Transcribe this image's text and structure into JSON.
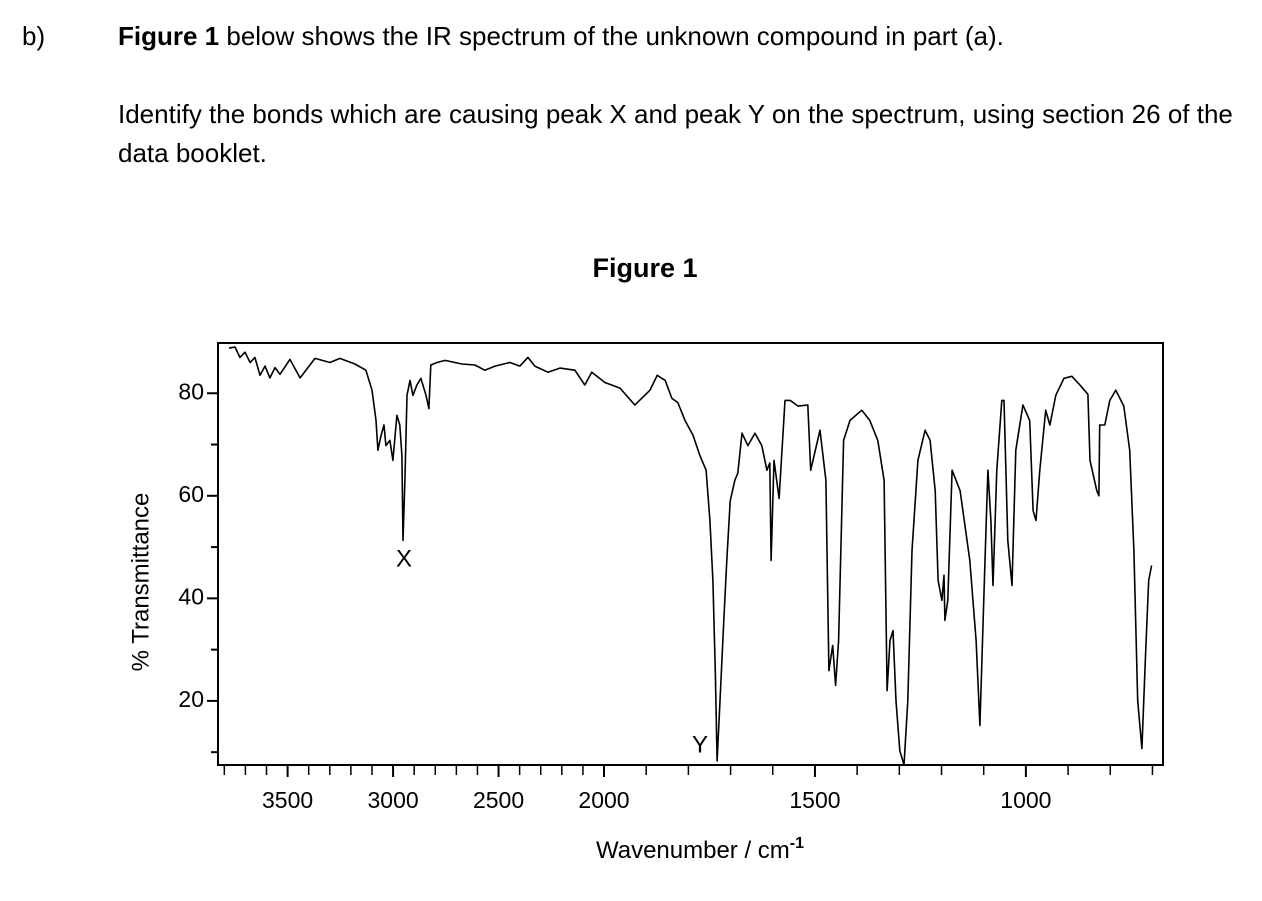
{
  "question": {
    "label": "b)",
    "lead_bold": "Figure 1",
    "lead_rest": " below shows the IR spectrum of the unknown compound in part (a).",
    "instruction": "Identify the bonds which are causing peak X and peak Y on the spectrum, using section 26 of the data booklet."
  },
  "chart_data": {
    "type": "line",
    "title": "Figure 1",
    "x_label": "Wavenumber / cm",
    "x_label_superscript": "-1",
    "y_label": "% Transmittance",
    "x": [
      3778,
      3749,
      3726,
      3702,
      3678,
      3655,
      3631,
      3607,
      3584,
      3560,
      3536,
      3489,
      3441,
      3370,
      3299,
      3252,
      3181,
      3129,
      3100,
      3081,
      3072,
      3057,
      3043,
      3034,
      3015,
      3001,
      2982,
      2968,
      2958,
      2953,
      2944,
      2934,
      2920,
      2906,
      2887,
      2868,
      2844,
      2830,
      2821,
      2792,
      2754,
      2707,
      2674,
      2612,
      2565,
      2517,
      2446,
      2399,
      2361,
      2328,
      2266,
      2209,
      2138,
      2091,
      2058,
      1998,
      1962,
      1927,
      1891,
      1874,
      1855,
      1839,
      1825,
      1808,
      1789,
      1773,
      1758,
      1749,
      1742,
      1736,
      1732,
      1725,
      1716,
      1709,
      1701,
      1690,
      1683,
      1673,
      1659,
      1642,
      1626,
      1614,
      1607,
      1604,
      1597,
      1585,
      1571,
      1559,
      1540,
      1517,
      1510,
      1488,
      1474,
      1467,
      1458,
      1451,
      1444,
      1432,
      1417,
      1389,
      1370,
      1351,
      1336,
      1329,
      1322,
      1315,
      1308,
      1299,
      1289,
      1280,
      1270,
      1256,
      1239,
      1227,
      1215,
      1208,
      1199,
      1194,
      1192,
      1185,
      1175,
      1156,
      1133,
      1118,
      1109,
      1097,
      1090,
      1083,
      1078,
      1069,
      1057,
      1052,
      1043,
      1033,
      1024,
      1007,
      991,
      983,
      976,
      967,
      953,
      943,
      929,
      910,
      891,
      872,
      853,
      848,
      832,
      827,
      825,
      813,
      801,
      787,
      768,
      754,
      744,
      735,
      725,
      716,
      709,
      702
    ],
    "values": [
      88.8,
      89,
      87,
      88,
      86,
      87,
      83.5,
      85.3,
      83,
      85,
      83.7,
      86.6,
      83,
      86.8,
      86,
      86.8,
      85.7,
      84.5,
      80.6,
      74.7,
      68.9,
      71.8,
      73.8,
      69.8,
      70.8,
      66.9,
      75.7,
      73.8,
      67.9,
      51.3,
      63,
      79.6,
      82.5,
      79.6,
      81.6,
      82.9,
      79.6,
      77,
      85.5,
      86,
      86.4,
      86,
      85.7,
      85.5,
      84.5,
      85.3,
      86,
      85.3,
      87,
      85.3,
      84.1,
      84.9,
      84.5,
      81.6,
      84.1,
      82.1,
      81,
      77.7,
      80.6,
      83.5,
      82.5,
      79,
      78.2,
      74.7,
      71.8,
      67.9,
      65,
      55.2,
      43.5,
      25,
      8.3,
      20,
      35.7,
      47.4,
      59,
      63,
      64.4,
      72.2,
      69.8,
      72.2,
      69.8,
      65,
      66.4,
      47.4,
      66.9,
      59.5,
      78.6,
      78.6,
      77.5,
      77.7,
      65,
      72.8,
      63,
      25.9,
      30.8,
      23,
      31.8,
      70.8,
      74.7,
      76.7,
      74.7,
      70.8,
      63,
      22,
      31.8,
      33.7,
      20,
      10.3,
      7.5,
      20,
      49.3,
      66.9,
      72.8,
      70.8,
      61,
      43.5,
      39.6,
      44.5,
      35.7,
      39.6,
      65,
      61,
      47.4,
      31.8,
      15.2,
      47.4,
      65,
      55.2,
      42.5,
      65,
      78.6,
      78.6,
      51.3,
      42.5,
      68.9,
      77.7,
      74.7,
      57.1,
      55.2,
      65,
      76.7,
      73.8,
      79.6,
      82.9,
      83.3,
      81.6,
      79.8,
      66.9,
      61,
      60,
      73.8,
      73.8,
      78.6,
      80.6,
      77.5,
      68.9,
      49.3,
      20,
      10.7,
      29.8,
      43.5,
      46.4
    ],
    "color": "#000000",
    "xlim": [
      3830,
      675
    ],
    "x_scale_break": 2000,
    "xticks": [
      3500,
      3000,
      2500,
      2000,
      1500,
      1000
    ],
    "x_minor_ticks": [
      3800,
      3700,
      3600,
      3400,
      3300,
      3200,
      3100,
      2900,
      2800,
      2700,
      2600,
      2400,
      2300,
      2200,
      2100,
      1900,
      1800,
      1700,
      1600,
      1400,
      1300,
      1200,
      1100,
      900,
      800,
      700
    ],
    "ylim": [
      7.5,
      89.8
    ],
    "yticks": [
      20,
      40,
      60,
      80
    ],
    "y_minor_ticks": [
      10,
      30,
      50,
      70
    ],
    "annotations": [
      "X",
      "Y"
    ]
  }
}
